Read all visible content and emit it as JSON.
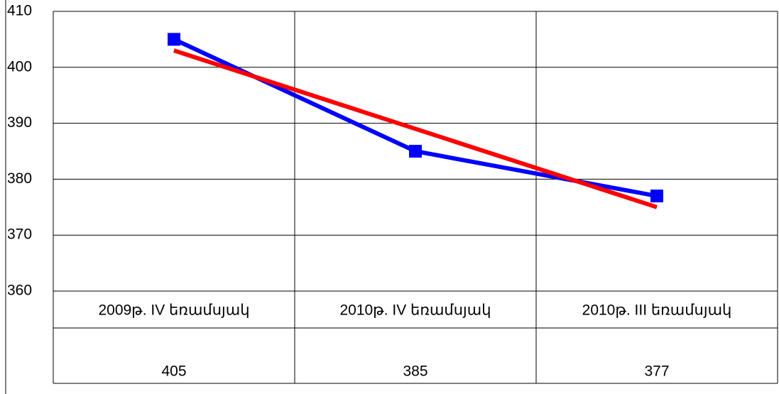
{
  "chart_data": {
    "type": "line",
    "categories": [
      "2009թ. IV եռամսյակ",
      "2010թ. IV եռամսյակ",
      "2010թ. III եռամսյակ"
    ],
    "series": [
      {
        "color": "#0000ff",
        "values": [
          405,
          385,
          377
        ]
      }
    ],
    "trendline": {
      "color": "#ff0000",
      "values": [
        403,
        389,
        375
      ]
    },
    "ylim": [
      360,
      410
    ],
    "yticks": [
      360,
      370,
      380,
      390,
      400,
      410
    ],
    "grid": true,
    "data_table": true
  }
}
